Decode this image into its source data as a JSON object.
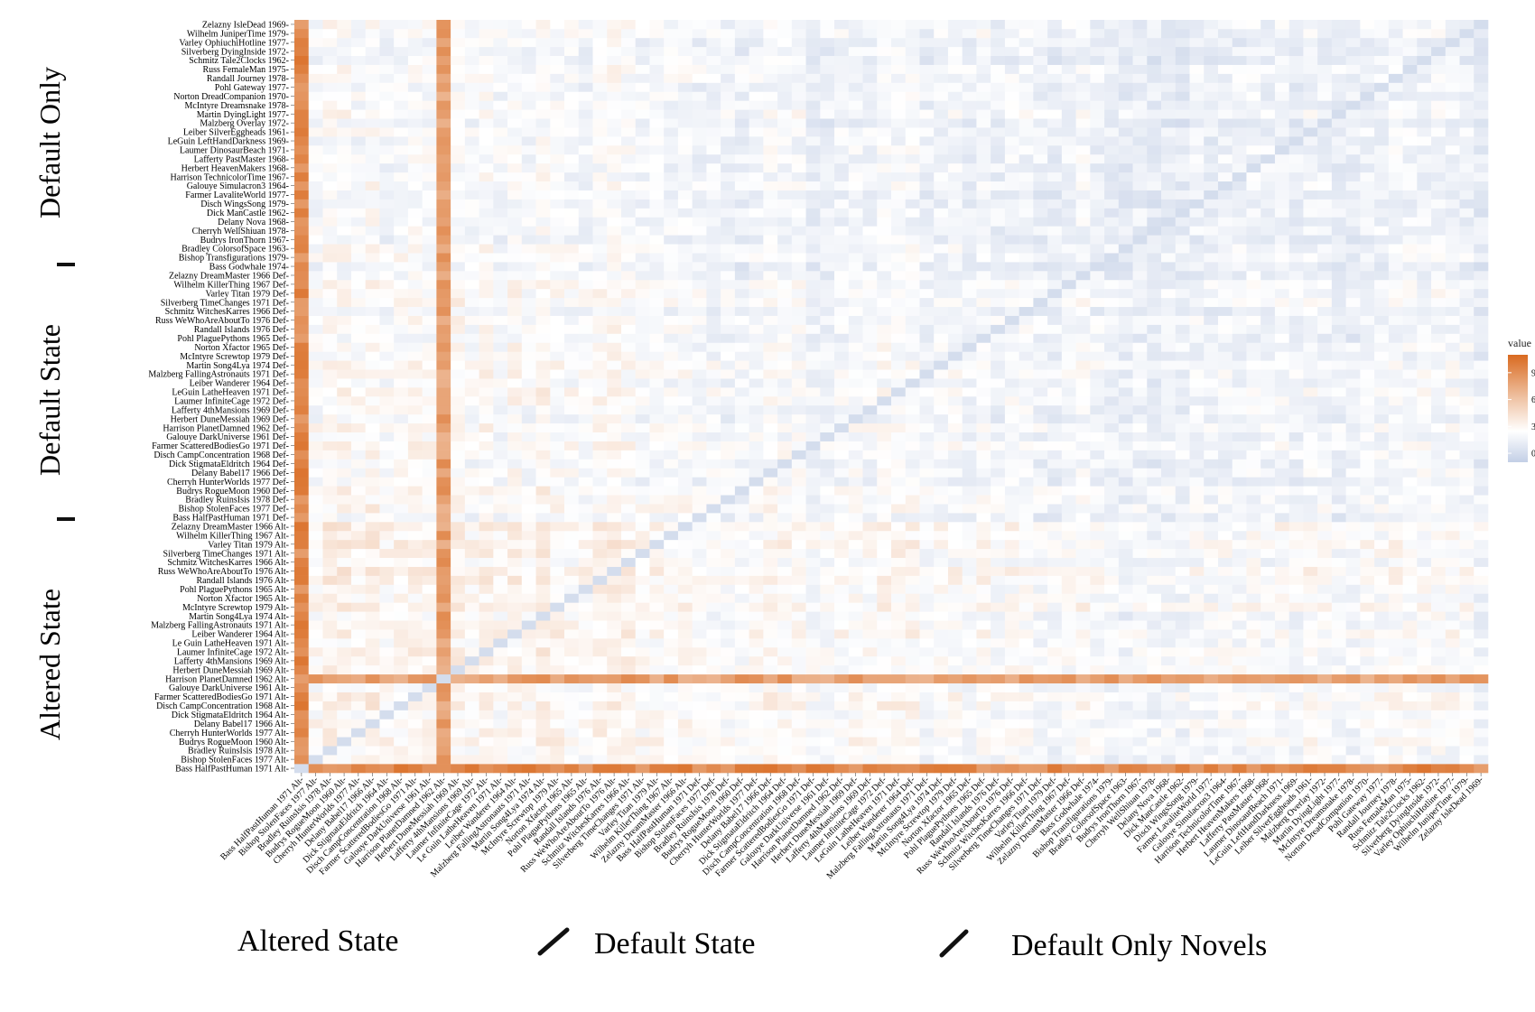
{
  "chart_data": {
    "type": "heatmap",
    "title": "",
    "xlabel": "",
    "ylabel": "",
    "legend": {
      "title": "value",
      "ticks": [
        0,
        3,
        6,
        9
      ],
      "range": [
        -1,
        11
      ],
      "colors": {
        "low": "#c3cfe6",
        "mid": "#ffffff",
        "high": "#d96a20"
      },
      "position": "right"
    },
    "labels": [
      "Bass HalfPastHuman 1971 Alt-",
      "Bishop StolenFaces 1977 Alt-",
      "Bradley RuinsIsis 1978 Alt-",
      "Budrys RogueMoon 1960 Alt-",
      "Cherryh HunterWorlds 1977 Alt-",
      "Delany Babel17 1966 Alt-",
      "Dick StigmataEldritch 1964 Alt-",
      "Disch CampConcentration 1968 Alt-",
      "Farmer ScatteredBodiesGo 1971 Alt-",
      "Galouye DarkUniverse 1961 Alt-",
      "Harrison PlanetDamned 1962 Alt-",
      "Herbert DuneMessiah 1969 Alt-",
      "Lafferty 4thMansions 1969 Alt-",
      "Laumer InfiniteCage 1972 Alt-",
      "Le Guin LatheHeaven 1971 Alt-",
      "Leiber Wanderer 1964 Alt-",
      "Malzberg FallingAstronauts 1971 Alt-",
      "Martin Song4Lya 1974 Alt-",
      "McIntyre Screwtop 1979 Alt-",
      "Norton Xfactor 1965 Alt-",
      "Pohl PlaguePythons 1965 Alt-",
      "Randall Islands 1976 Alt-",
      "Russ WeWhoAreAboutTo 1976 Alt-",
      "Schmitz WitchesKarres 1966 Alt-",
      "Silverberg TimeChanges 1971 Alt-",
      "Varley Titan 1979 Alt-",
      "Wilhelm KillerThing 1967 Alt-",
      "Zelazny DreamMaster 1966 Alt-",
      "Bass HalfPastHuman 1971 Def-",
      "Bishop StolenFaces 1977 Def-",
      "Bradley RuinsIsis 1978 Def-",
      "Budrys RogueMoon 1960 Def-",
      "Cherryh HunterWorlds 1977 Def-",
      "Delany Babel17 1966 Def-",
      "Dick StigmataEldritch 1964 Def-",
      "Disch CampConcentration 1968 Def-",
      "Farmer ScatteredBodiesGo 1971 Def-",
      "Galouye DarkUniverse 1961 Def-",
      "Harrison PlanetDamned 1962 Def-",
      "Herbert DuneMessiah 1969 Def-",
      "Lafferty 4thMansions 1969 Def-",
      "Laumer InfiniteCage 1972 Def-",
      "LeGuin LatheHeaven 1971 Def-",
      "Leiber Wanderer 1964 Def-",
      "Malzberg FallingAstronauts 1971 Def-",
      "Martin Song4Lya 1974 Def-",
      "McIntyre Screwtop 1979 Def-",
      "Norton Xfactor 1965 Def-",
      "Pohl PlaguePythons 1965 Def-",
      "Randall Islands 1976 Def-",
      "Russ WeWhoAreAboutTo 1976 Def-",
      "Schmitz WitchesKarres 1966 Def-",
      "Silverberg TimeChanges 1971 Def-",
      "Varley Titan 1979 Def-",
      "Wilhelm KillerThing 1967 Def-",
      "Zelazny DreamMaster 1966 Def-",
      "Bass Godwhale 1974-",
      "Bishop Transfigurations 1979-",
      "Bradley ColorsofSpace 1963-",
      "Budrys IronThorn 1967-",
      "Cherryh WellShiuan 1978-",
      "Delany Nova 1968-",
      "Dick ManCastle 1962-",
      "Disch WingsSong 1979-",
      "Farmer LavaliteWorld 1977-",
      "Galouye Simulacron3 1964-",
      "Harrison TechnicolorTime 1967-",
      "Herbert HeavenMakers 1968-",
      "Lafferty PastMaster 1968-",
      "Laumer DinosaurBeach 1971-",
      "LeGuin LeftHandDarkness 1969-",
      "Leiber SilverEggheads 1961-",
      "Malzberg Overlay 1972-",
      "Martin DyingLight 1977-",
      "McIntyre Dreamsnake 1978-",
      "Norton DreadCompanion 1970-",
      "Pohl Gateway 1977-",
      "Randall Journey 1978-",
      "Russ FemaleMan 1975-",
      "Schmitz Tale2Clocks 1962-",
      "Silverberg DyingInside 1972-",
      "Varley OphiuchiHotline 1977-",
      "Wilhelm JuniperTime 1979-",
      "Zelazny IsleDead 1969-"
    ],
    "strong_rows": [
      {
        "row": 0,
        "value": 9.2
      },
      {
        "row": 10,
        "value": 8.0
      }
    ],
    "strong_cols": [
      {
        "col": 0,
        "value": 9.2
      },
      {
        "col": 10,
        "value": 8.0
      }
    ],
    "diagonal_value": 0
  },
  "annotations": {
    "y_groups": [
      "Altered State",
      "Default State",
      "Default Only"
    ],
    "x_groups": [
      "Altered State",
      "Default State",
      "Default Only Novels"
    ]
  }
}
